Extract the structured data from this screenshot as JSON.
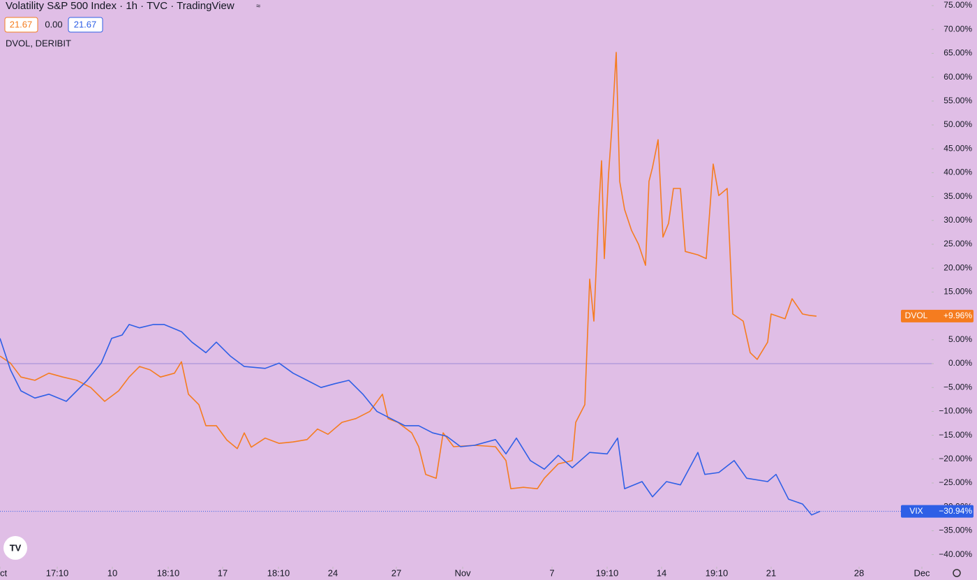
{
  "chart_data": {
    "type": "line",
    "title": "Volatility S&P 500 Index · 1h · TVC · TradingView",
    "header_values": [
      "21.67",
      "0.00",
      "21.67"
    ],
    "subtitle": "DVOL, DERIBIT",
    "background": "#e0bee6",
    "baseline": 0,
    "xlim": [
      0,
      1335
    ],
    "ylim": [
      -42.25,
      76.17
    ],
    "xticks": [
      {
        "value": 0,
        "label": "Oct"
      },
      {
        "value": 82,
        "label": "17:10"
      },
      {
        "value": 161,
        "label": "10"
      },
      {
        "value": 241,
        "label": "18:10"
      },
      {
        "value": 319,
        "label": "17"
      },
      {
        "value": 399,
        "label": "18:10"
      },
      {
        "value": 477,
        "label": "24"
      },
      {
        "value": 568,
        "label": "27"
      },
      {
        "value": 663,
        "label": "Nov"
      },
      {
        "value": 791,
        "label": "7"
      },
      {
        "value": 870,
        "label": "19:10"
      },
      {
        "value": 948,
        "label": "14"
      },
      {
        "value": 1027,
        "label": "19:10"
      },
      {
        "value": 1105,
        "label": "21"
      },
      {
        "value": 1231,
        "label": "28"
      },
      {
        "value": 1321,
        "label": "Dec"
      }
    ],
    "yticks": [
      {
        "value": 75,
        "label": "75.00%"
      },
      {
        "value": 70,
        "label": "70.00%"
      },
      {
        "value": 65,
        "label": "65.00%"
      },
      {
        "value": 60,
        "label": "60.00%"
      },
      {
        "value": 55,
        "label": "55.00%"
      },
      {
        "value": 50,
        "label": "50.00%"
      },
      {
        "value": 45,
        "label": "45.00%"
      },
      {
        "value": 40,
        "label": "40.00%"
      },
      {
        "value": 35,
        "label": "35.00%"
      },
      {
        "value": 30,
        "label": "30.00%"
      },
      {
        "value": 25,
        "label": "25.00%"
      },
      {
        "value": 20,
        "label": "20.00%"
      },
      {
        "value": 15,
        "label": "15.00%"
      },
      {
        "value": 10,
        "label": "10.00%"
      },
      {
        "value": 5,
        "label": "5.00%"
      },
      {
        "value": 0,
        "label": "0.00%"
      },
      {
        "value": -5,
        "label": "−5.00%"
      },
      {
        "value": -10,
        "label": "−10.00%"
      },
      {
        "value": -15,
        "label": "−15.00%"
      },
      {
        "value": -20,
        "label": "−20.00%"
      },
      {
        "value": -25,
        "label": "−25.00%"
      },
      {
        "value": -30,
        "label": "−30.00%"
      },
      {
        "value": -35,
        "label": "−35.00%"
      },
      {
        "value": -40,
        "label": "−40.00%"
      }
    ],
    "series": [
      {
        "name": "DVOL",
        "color": "#f57c1f",
        "end_label": "+9.96%",
        "x": [
          0,
          15,
          30,
          50,
          70,
          90,
          110,
          130,
          150,
          170,
          185,
          200,
          215,
          230,
          250,
          260,
          270,
          285,
          295,
          310,
          325,
          340,
          350,
          360,
          380,
          400,
          420,
          440,
          455,
          470,
          490,
          510,
          530,
          548,
          556,
          570,
          590,
          600,
          610,
          625,
          635,
          650,
          680,
          710,
          725,
          732,
          750,
          770,
          780,
          800,
          820,
          825,
          838,
          845,
          851,
          858,
          862,
          866,
          872,
          877,
          883,
          888,
          895,
          905,
          915,
          925,
          930,
          935,
          943,
          950,
          958,
          965,
          975,
          982,
          1000,
          1012,
          1022,
          1030,
          1042,
          1050,
          1065,
          1075,
          1085,
          1100,
          1105,
          1125,
          1135,
          1150,
          1160,
          1170
        ],
        "values": [
          1.6,
          0.1,
          -2.8,
          -3.5,
          -2,
          -2.8,
          -3.5,
          -5,
          -7.9,
          -5.7,
          -2.8,
          -0.6,
          -1.3,
          -2.8,
          -2,
          0.4,
          -6.4,
          -8.6,
          -13,
          -13,
          -16,
          -17.8,
          -14.5,
          -17.5,
          -15.6,
          -16.7,
          -16.4,
          -15.9,
          -13.7,
          -14.8,
          -12.3,
          -11.5,
          -10,
          -6.4,
          -11.5,
          -12.3,
          -14.5,
          -17.4,
          -23.2,
          -24,
          -14.5,
          -17.4,
          -17.1,
          -17.4,
          -20.3,
          -26.2,
          -25.9,
          -26.2,
          -24,
          -21,
          -20.3,
          -12.3,
          -8.6,
          17.7,
          8.9,
          32.3,
          42.5,
          22,
          39.6,
          49.9,
          65.2,
          38.2,
          32.3,
          27.9,
          25,
          20.6,
          38.2,
          41.1,
          46.9,
          26.5,
          29.4,
          36.7,
          36.7,
          23.5,
          22.8,
          22,
          41.8,
          35.2,
          36.7,
          10.4,
          8.9,
          2.3,
          0.9,
          4.5,
          10.4,
          9.4,
          13.6,
          10.4,
          10.1,
          9.96
        ]
      },
      {
        "name": "VIX",
        "color": "#2e5fe6",
        "end_label": "−30.94%",
        "x": [
          0,
          15,
          30,
          50,
          70,
          95,
          110,
          125,
          145,
          160,
          175,
          185,
          200,
          220,
          235,
          260,
          275,
          295,
          310,
          330,
          350,
          380,
          400,
          420,
          440,
          460,
          480,
          500,
          520,
          540,
          560,
          580,
          600,
          620,
          640,
          660,
          680,
          710,
          725,
          740,
          760,
          780,
          800,
          820,
          845,
          870,
          885,
          895,
          920,
          935,
          955,
          975,
          1000,
          1010,
          1030,
          1052,
          1070,
          1100,
          1112,
          1130,
          1150,
          1163,
          1175
        ],
        "values": [
          5.3,
          -1.3,
          -5.7,
          -7.2,
          -6.4,
          -7.9,
          -5.7,
          -3.5,
          0.1,
          5.3,
          6,
          8.2,
          7.5,
          8.2,
          8.2,
          6.7,
          4.5,
          2.3,
          4.5,
          1.6,
          -0.6,
          -1,
          0.1,
          -2,
          -3.5,
          -5,
          -4.2,
          -3.5,
          -6.4,
          -10,
          -11.5,
          -13,
          -13,
          -14.5,
          -15.2,
          -17.4,
          -17.1,
          -15.9,
          -18.9,
          -15.6,
          -20.3,
          -22.1,
          -19.2,
          -21.8,
          -18.6,
          -18.9,
          -15.6,
          -26.2,
          -24.7,
          -27.9,
          -24.7,
          -25.4,
          -18.6,
          -23.2,
          -22.8,
          -20.3,
          -24,
          -24.7,
          -23.2,
          -28.4,
          -29.4,
          -31.7,
          -30.94
        ]
      }
    ]
  }
}
